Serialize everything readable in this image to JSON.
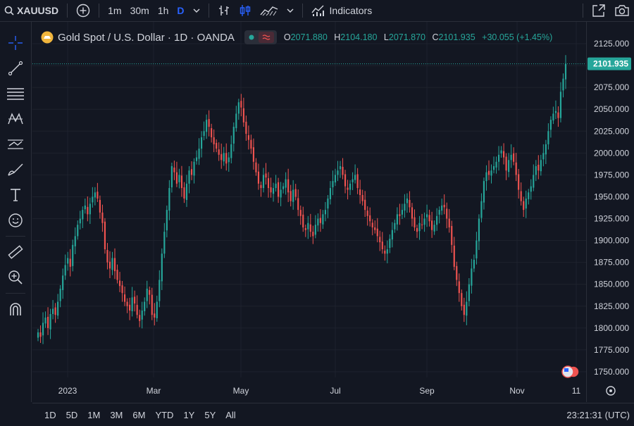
{
  "toolbar": {
    "symbol": "XAUUSD",
    "intervals": [
      "1m",
      "30m",
      "1h",
      "D"
    ],
    "indicators_label": "Indicators"
  },
  "legend": {
    "title": "Gold Spot / U.S. Dollar · 1D · OANDA",
    "open_key": "O",
    "open": "2071.880",
    "high_key": "H",
    "high": "2104.180",
    "low_key": "L",
    "low": "2071.870",
    "close_key": "C",
    "close": "2101.935",
    "change": "+30.055 (+1.45%)"
  },
  "ranges": [
    "1D",
    "5D",
    "1M",
    "3M",
    "6M",
    "YTD",
    "1Y",
    "5Y",
    "All"
  ],
  "clock": "23:21:31 (UTC)",
  "colors": {
    "up": "#26a69a",
    "down": "#ef5350",
    "bg": "#131722",
    "accent": "#2962ff"
  },
  "chart_data": {
    "type": "candlestick",
    "title": "Gold Spot / U.S. Dollar · 1D · OANDA",
    "ylim": [
      1740,
      2140
    ],
    "y_ticks": [
      "2125.000",
      "2100.000",
      "2075.000",
      "2050.000",
      "2025.000",
      "2000.000",
      "1975.000",
      "1950.000",
      "1925.000",
      "1900.000",
      "1875.000",
      "1850.000",
      "1825.000",
      "1800.000",
      "1775.000",
      "1750.000"
    ],
    "x_tick_labels": [
      "2023",
      "Mar",
      "May",
      "Jul",
      "Sep",
      "Nov",
      "11"
    ],
    "last_price_label": "2101.935",
    "close_path": [
      1795,
      1790,
      1806,
      1812,
      1800,
      1816,
      1822,
      1815,
      1830,
      1845,
      1860,
      1872,
      1880,
      1870,
      1895,
      1905,
      1918,
      1925,
      1935,
      1940,
      1930,
      1942,
      1950,
      1955,
      1948,
      1932,
      1920,
      1890,
      1875,
      1868,
      1880,
      1865,
      1855,
      1848,
      1840,
      1830,
      1825,
      1820,
      1835,
      1828,
      1815,
      1808,
      1820,
      1830,
      1845,
      1838,
      1815,
      1812,
      1830,
      1855,
      1885,
      1910,
      1935,
      1960,
      1985,
      1978,
      1965,
      1975,
      1960,
      1948,
      1965,
      1980,
      1975,
      1990,
      1995,
      2005,
      2018,
      2025,
      2038,
      2030,
      2018,
      2010,
      2005,
      1998,
      1992,
      2000,
      1988,
      1995,
      2010,
      2030,
      2045,
      2058,
      2052,
      2035,
      2022,
      2015,
      2005,
      1990,
      1978,
      1965,
      1960,
      1975,
      1972,
      1960,
      1955,
      1960,
      1965,
      1950,
      1958,
      1962,
      1970,
      1955,
      1945,
      1958,
      1950,
      1935,
      1928,
      1915,
      1912,
      1920,
      1910,
      1905,
      1918,
      1925,
      1920,
      1930,
      1935,
      1948,
      1960,
      1968,
      1975,
      1980,
      1985,
      1975,
      1962,
      1958,
      1965,
      1970,
      1975,
      1960,
      1952,
      1945,
      1935,
      1928,
      1922,
      1915,
      1912,
      1905,
      1898,
      1890,
      1885,
      1890,
      1902,
      1912,
      1920,
      1930,
      1928,
      1935,
      1942,
      1948,
      1938,
      1925,
      1915,
      1910,
      1920,
      1918,
      1925,
      1930,
      1922,
      1912,
      1918,
      1928,
      1935,
      1940,
      1938,
      1925,
      1915,
      1895,
      1870,
      1855,
      1840,
      1825,
      1815,
      1830,
      1850,
      1868,
      1878,
      1900,
      1925,
      1945,
      1968,
      1978,
      1975,
      1980,
      1985,
      1990,
      1998,
      2003,
      1995,
      1980,
      1992,
      1998,
      1990,
      1975,
      1958,
      1945,
      1935,
      1948,
      1955,
      1962,
      1975,
      1985,
      1980,
      1992,
      2000,
      2010,
      2025,
      2038,
      2045,
      2048,
      2040,
      2070,
      2085,
      2101.935
    ]
  }
}
